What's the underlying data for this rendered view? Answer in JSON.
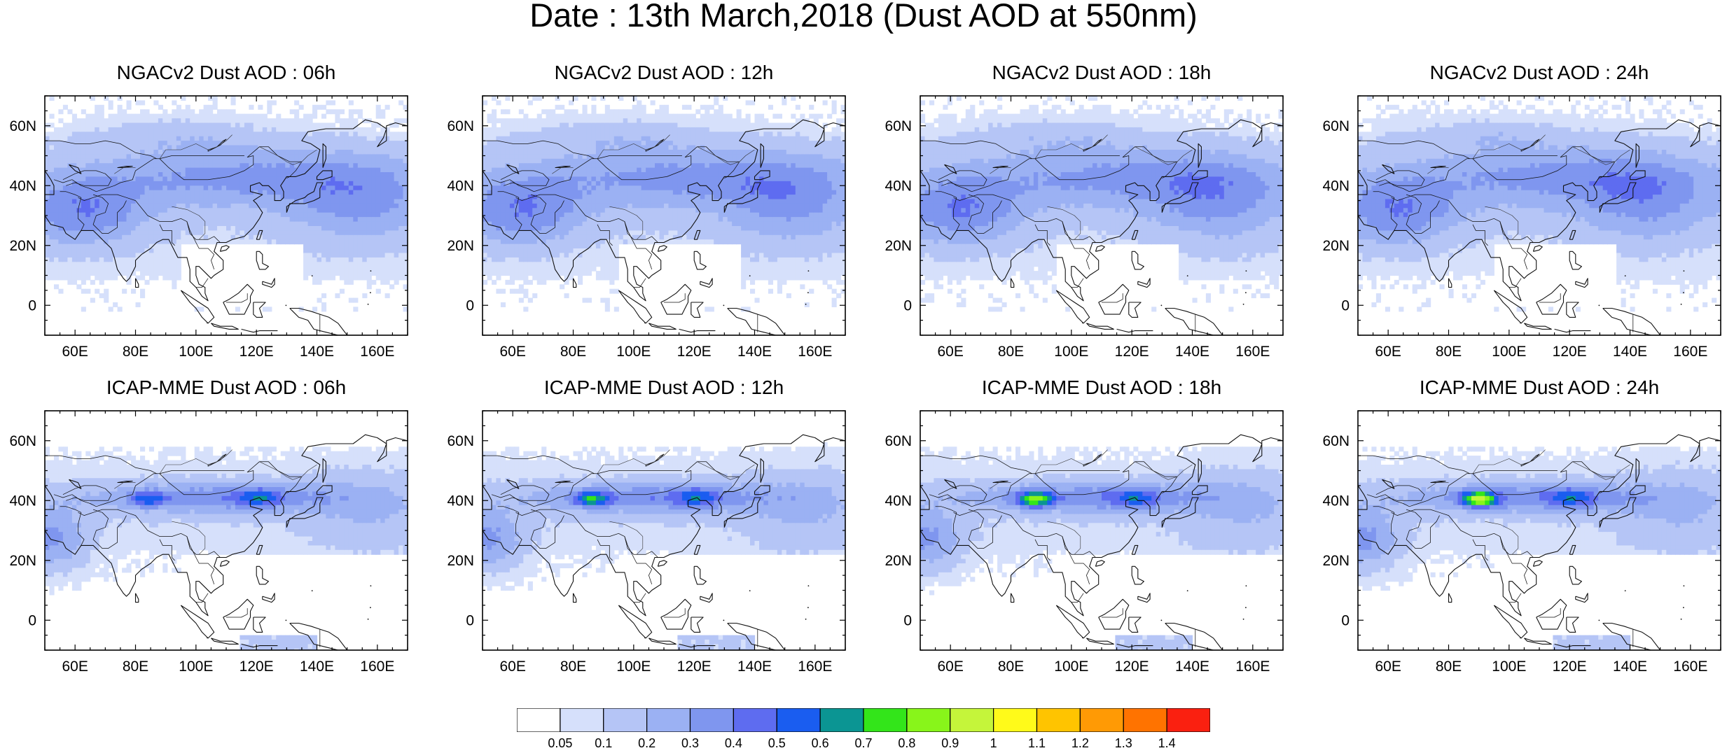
{
  "title": "Date : 13th March,2018 (Dust AOD at 550nm)",
  "map_grid": {
    "lon_ticks": [
      "60E",
      "80E",
      "100E",
      "120E",
      "140E",
      "160E"
    ],
    "lat_ticks": [
      "60N",
      "40N",
      "20N",
      "0"
    ]
  },
  "panels": [
    {
      "title": "NGACv2 Dust AOD : 06h"
    },
    {
      "title": "NGACv2 Dust AOD : 12h"
    },
    {
      "title": "NGACv2 Dust AOD : 18h"
    },
    {
      "title": "NGACv2 Dust AOD : 24h"
    },
    {
      "title": "ICAP-MME Dust AOD : 06h"
    },
    {
      "title": "ICAP-MME Dust AOD : 12h"
    },
    {
      "title": "ICAP-MME Dust AOD : 18h"
    },
    {
      "title": "ICAP-MME Dust AOD : 24h"
    }
  ],
  "colorbar": {
    "labels": [
      "0.05",
      "0.1",
      "0.2",
      "0.3",
      "0.4",
      "0.5",
      "0.6",
      "0.7",
      "0.8",
      "0.9",
      "1",
      "1.1",
      "1.2",
      "1.3",
      "1.4"
    ],
    "colors": [
      "#ffffff",
      "#d6e0fb",
      "#b5c5f6",
      "#9bb1f3",
      "#7f96ef",
      "#5e6cf0",
      "#1a5df0",
      "#0b9593",
      "#33e51a",
      "#88f51a",
      "#c5f53a",
      "#fffa1a",
      "#ffc400",
      "#ff9a05",
      "#ff7300",
      "#fa2010"
    ]
  }
}
